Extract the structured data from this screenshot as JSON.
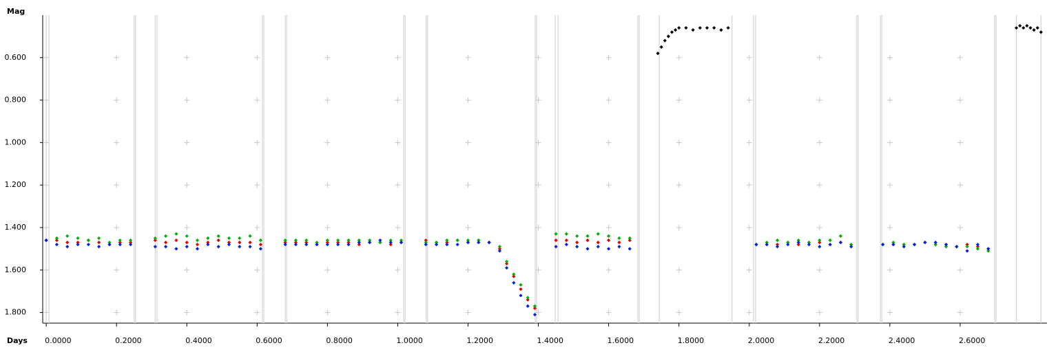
{
  "chart_data": {
    "type": "scatter",
    "ylabel": "Mag",
    "xlabel": "Days",
    "xlim": [
      -0.01,
      2.847
    ],
    "ylim": [
      0.4,
      1.85
    ],
    "y_inverted": true,
    "grid": true,
    "xticks": [
      {
        "value": 0,
        "label": "0.0000"
      },
      {
        "value": 0.2,
        "label": "0.2000"
      },
      {
        "value": 0.4,
        "label": "0.4000"
      },
      {
        "value": 0.6,
        "label": "0.6000"
      },
      {
        "value": 0.8,
        "label": "0.8000"
      },
      {
        "value": 1.0,
        "label": "1.0000"
      },
      {
        "value": 1.2,
        "label": "1.2000"
      },
      {
        "value": 1.4,
        "label": "1.4000"
      },
      {
        "value": 1.6,
        "label": "1.6000"
      },
      {
        "value": 1.8,
        "label": "1.8000"
      },
      {
        "value": 2.0,
        "label": "2.0000"
      },
      {
        "value": 2.2,
        "label": "2.2000"
      },
      {
        "value": 2.4,
        "label": "2.4000"
      },
      {
        "value": 2.6,
        "label": "2.6000"
      }
    ],
    "yticks": [
      {
        "value": 0.6,
        "label": "0.600"
      },
      {
        "value": 0.8,
        "label": "0.800"
      },
      {
        "value": 1.0,
        "label": "1.000"
      },
      {
        "value": 1.2,
        "label": "1.200"
      },
      {
        "value": 1.4,
        "label": "1.400"
      },
      {
        "value": 1.6,
        "label": "1.600"
      },
      {
        "value": 1.8,
        "label": "1.800"
      }
    ],
    "session_bounds": [
      0.0,
      0.008,
      0.25,
      0.254,
      0.31,
      0.315,
      0.615,
      0.619,
      0.68,
      0.684,
      1.017,
      1.021,
      1.081,
      1.085,
      1.391,
      1.395,
      1.448,
      1.456,
      1.683,
      1.687,
      1.744,
      1.951,
      2.012,
      2.018,
      2.306,
      2.31,
      2.373,
      2.377,
      2.698,
      2.702,
      2.76,
      2.83
    ],
    "series": [
      {
        "color": "#e00000",
        "x": [
          0.0,
          0.03,
          0.06,
          0.09,
          0.12,
          0.15,
          0.18,
          0.21,
          0.24,
          0.31,
          0.34,
          0.37,
          0.4,
          0.43,
          0.46,
          0.49,
          0.52,
          0.55,
          0.58,
          0.61,
          0.68,
          0.71,
          0.74,
          0.77,
          0.8,
          0.83,
          0.86,
          0.89,
          0.92,
          0.95,
          0.98,
          1.01,
          1.08,
          1.11,
          1.14,
          1.17,
          1.2,
          1.23,
          1.26,
          1.29,
          1.31,
          1.33,
          1.35,
          1.37,
          1.39,
          1.45,
          1.48,
          1.51,
          1.54,
          1.57,
          1.6,
          1.63,
          1.66,
          2.02,
          2.05,
          2.08,
          2.11,
          2.14,
          2.17,
          2.2,
          2.23,
          2.26,
          2.29,
          2.38,
          2.41,
          2.44,
          2.47,
          2.5,
          2.53,
          2.56,
          2.59,
          2.62,
          2.65,
          2.68
        ],
        "values": [
          1.46,
          1.46,
          1.47,
          1.47,
          1.46,
          1.47,
          1.48,
          1.47,
          1.47,
          1.46,
          1.47,
          1.46,
          1.47,
          1.48,
          1.47,
          1.46,
          1.47,
          1.47,
          1.47,
          1.48,
          1.47,
          1.47,
          1.47,
          1.48,
          1.47,
          1.47,
          1.47,
          1.48,
          1.47,
          1.47,
          1.48,
          1.47,
          1.46,
          1.47,
          1.47,
          1.46,
          1.47,
          1.46,
          1.47,
          1.5,
          1.57,
          1.63,
          1.69,
          1.74,
          1.78,
          1.46,
          1.46,
          1.47,
          1.46,
          1.47,
          1.46,
          1.47,
          1.46,
          1.48,
          1.48,
          1.48,
          1.47,
          1.48,
          1.47,
          1.47,
          1.48,
          1.47,
          1.48,
          1.48,
          1.48,
          1.48,
          1.48,
          1.47,
          1.48,
          1.48,
          1.49,
          1.48,
          1.49,
          1.5
        ]
      },
      {
        "color": "#00b000",
        "x": [
          0.0,
          0.03,
          0.06,
          0.09,
          0.12,
          0.15,
          0.18,
          0.21,
          0.24,
          0.31,
          0.34,
          0.37,
          0.4,
          0.43,
          0.46,
          0.49,
          0.52,
          0.55,
          0.58,
          0.61,
          0.68,
          0.71,
          0.74,
          0.77,
          0.8,
          0.83,
          0.86,
          0.89,
          0.92,
          0.95,
          0.98,
          1.01,
          1.08,
          1.11,
          1.14,
          1.17,
          1.2,
          1.23,
          1.26,
          1.29,
          1.31,
          1.33,
          1.35,
          1.37,
          1.39,
          1.45,
          1.48,
          1.51,
          1.54,
          1.57,
          1.6,
          1.63,
          1.66,
          2.02,
          2.05,
          2.08,
          2.11,
          2.14,
          2.17,
          2.2,
          2.23,
          2.26,
          2.29,
          2.38,
          2.41,
          2.44,
          2.47,
          2.5,
          2.53,
          2.56,
          2.59,
          2.62,
          2.65,
          2.68
        ],
        "values": [
          1.46,
          1.45,
          1.44,
          1.45,
          1.46,
          1.45,
          1.47,
          1.46,
          1.46,
          1.45,
          1.44,
          1.43,
          1.44,
          1.46,
          1.45,
          1.44,
          1.45,
          1.45,
          1.44,
          1.46,
          1.46,
          1.46,
          1.46,
          1.47,
          1.46,
          1.46,
          1.46,
          1.46,
          1.46,
          1.47,
          1.46,
          1.46,
          1.47,
          1.47,
          1.46,
          1.46,
          1.46,
          1.46,
          1.47,
          1.49,
          1.56,
          1.62,
          1.67,
          1.73,
          1.77,
          1.43,
          1.43,
          1.44,
          1.44,
          1.43,
          1.44,
          1.45,
          1.45,
          1.48,
          1.47,
          1.46,
          1.47,
          1.46,
          1.47,
          1.46,
          1.46,
          1.44,
          1.48,
          1.48,
          1.47,
          1.48,
          1.48,
          1.47,
          1.48,
          1.49,
          1.49,
          1.49,
          1.5,
          1.51
        ]
      },
      {
        "color": "#0020e0",
        "x": [
          0.0,
          0.03,
          0.06,
          0.09,
          0.12,
          0.15,
          0.18,
          0.21,
          0.24,
          0.31,
          0.34,
          0.37,
          0.4,
          0.43,
          0.46,
          0.49,
          0.52,
          0.55,
          0.58,
          0.61,
          0.68,
          0.71,
          0.74,
          0.77,
          0.8,
          0.83,
          0.86,
          0.89,
          0.92,
          0.95,
          0.98,
          1.01,
          1.08,
          1.11,
          1.14,
          1.17,
          1.2,
          1.23,
          1.26,
          1.29,
          1.31,
          1.33,
          1.35,
          1.37,
          1.39,
          1.45,
          1.48,
          1.51,
          1.54,
          1.57,
          1.6,
          1.63,
          1.66,
          2.02,
          2.05,
          2.08,
          2.11,
          2.14,
          2.17,
          2.2,
          2.23,
          2.26,
          2.29,
          2.38,
          2.41,
          2.44,
          2.47,
          2.5,
          2.53,
          2.56,
          2.59,
          2.62,
          2.65,
          2.68
        ],
        "values": [
          1.46,
          1.48,
          1.49,
          1.48,
          1.48,
          1.49,
          1.48,
          1.48,
          1.48,
          1.49,
          1.49,
          1.5,
          1.49,
          1.5,
          1.48,
          1.49,
          1.48,
          1.49,
          1.49,
          1.5,
          1.48,
          1.48,
          1.48,
          1.48,
          1.48,
          1.48,
          1.48,
          1.47,
          1.47,
          1.46,
          1.47,
          1.47,
          1.48,
          1.48,
          1.48,
          1.48,
          1.47,
          1.47,
          1.47,
          1.51,
          1.59,
          1.66,
          1.72,
          1.77,
          1.81,
          1.49,
          1.48,
          1.49,
          1.5,
          1.49,
          1.5,
          1.49,
          1.5,
          1.48,
          1.48,
          1.49,
          1.48,
          1.47,
          1.48,
          1.49,
          1.48,
          1.47,
          1.49,
          1.48,
          1.48,
          1.49,
          1.48,
          1.47,
          1.47,
          1.48,
          1.49,
          1.51,
          1.48,
          1.5
        ]
      },
      {
        "color": "#000000",
        "x": [
          1.74,
          1.75,
          1.76,
          1.77,
          1.78,
          1.79,
          1.8,
          1.82,
          1.84,
          1.86,
          1.88,
          1.9,
          1.92,
          1.94,
          2.76,
          2.77,
          2.78,
          2.79,
          2.8,
          2.81,
          2.82,
          2.83
        ],
        "values": [
          0.58,
          0.55,
          0.52,
          0.5,
          0.48,
          0.47,
          0.46,
          0.46,
          0.47,
          0.46,
          0.46,
          0.46,
          0.47,
          0.46,
          0.46,
          0.45,
          0.46,
          0.45,
          0.46,
          0.47,
          0.46,
          0.48
        ]
      }
    ]
  }
}
